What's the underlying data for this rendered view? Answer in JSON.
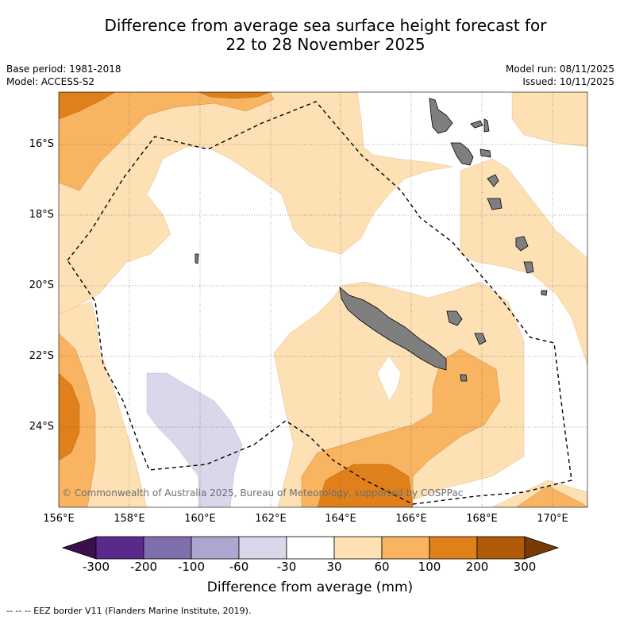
{
  "title": {
    "line1": "Difference from average sea surface height forecast for",
    "line2": "22 to 28 November 2025"
  },
  "meta": {
    "base_period": "Base period: 1981-2018",
    "model": "Model: ACCESS-S2",
    "model_run": "Model run: 08/11/2025",
    "issued": "Issued: 10/11/2025"
  },
  "map": {
    "lat_labels": [
      "16°S",
      "18°S",
      "20°S",
      "22°S",
      "24°S"
    ],
    "lon_labels": [
      "156°E",
      "158°E",
      "160°E",
      "162°E",
      "164°E",
      "166°E",
      "168°E",
      "170°E"
    ],
    "copyright": "© Commonwealth of Australia 2025, Bureau of Meteorology, supported by COSPPac"
  },
  "colorbar": {
    "tick_labels": [
      "-300",
      "-200",
      "-100",
      "-60",
      "-30",
      "30",
      "60",
      "100",
      "200",
      "300"
    ],
    "colors": [
      "#3b0f4f",
      "#5a2a8a",
      "#7f6fad",
      "#aea6cf",
      "#d8d8ea",
      "#ffffff",
      "#fde0b4",
      "#f9b462",
      "#e0801a",
      "#b05a0a",
      "#7a3a06"
    ],
    "title": "Difference from average (mm)"
  },
  "legend": {
    "eez": "--  --  -- EEZ border V11 (Flanders Marine Institute, 2019)."
  }
}
